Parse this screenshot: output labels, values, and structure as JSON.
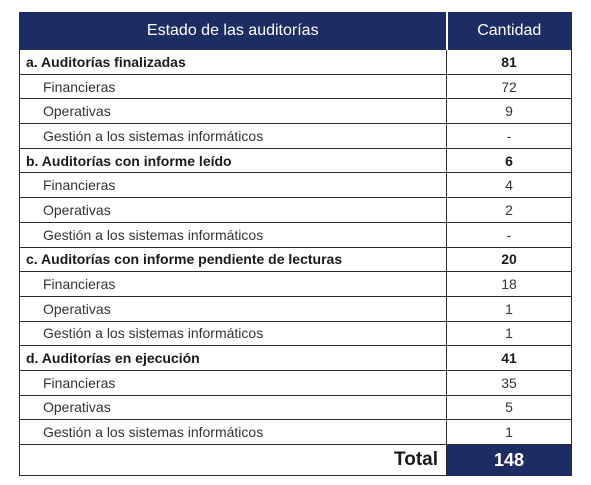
{
  "table": {
    "header": {
      "estado": "Estado de las auditorías",
      "cantidad": "Cantidad"
    },
    "rows": [
      {
        "label": "a. Auditorías finalizadas",
        "value": "81"
      },
      {
        "label": "Financieras",
        "value": "72"
      },
      {
        "label": "Operativas",
        "value": "9"
      },
      {
        "label": "Gestión a los sistemas informáticos",
        "value": "-"
      },
      {
        "label": "b. Auditorías con informe leído",
        "value": "6"
      },
      {
        "label": "Financieras",
        "value": "4"
      },
      {
        "label": "Operativas",
        "value": "2"
      },
      {
        "label": "Gestión a los sistemas informáticos",
        "value": "-"
      },
      {
        "label": "c. Auditorías con informe pendiente de lecturas",
        "value": "20"
      },
      {
        "label": "Financieras",
        "value": "18"
      },
      {
        "label": "Operativas",
        "value": "1"
      },
      {
        "label": "Gestión a los sistemas informáticos",
        "value": "1"
      },
      {
        "label": "d. Auditorías en ejecución",
        "value": "41"
      },
      {
        "label": "Financieras",
        "value": "35"
      },
      {
        "label": "Operativas",
        "value": "5"
      },
      {
        "label": "Gestión a los sistemas informáticos",
        "value": "1"
      }
    ],
    "total": {
      "label": "Total",
      "value": "148"
    }
  },
  "colors": {
    "header_bg": "#1d2c62",
    "header_text": "#ffffff",
    "border": "#2a2a2a"
  }
}
